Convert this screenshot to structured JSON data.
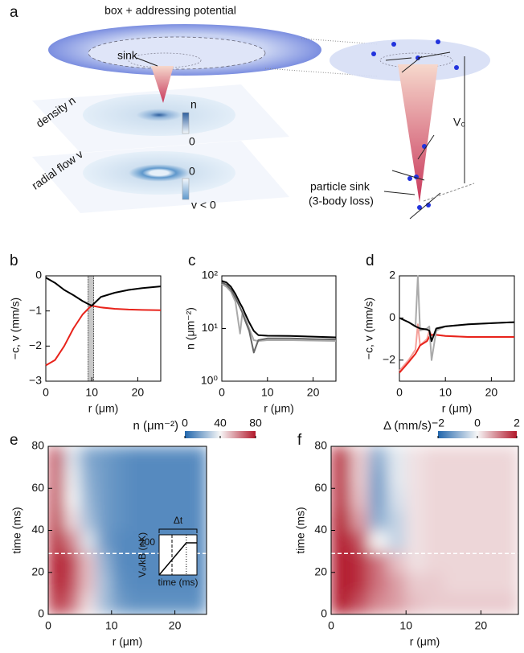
{
  "illustration": {
    "label": "a",
    "title": "box + addressing potential",
    "sink": "sink",
    "density": "density n",
    "flow": "radial flow v",
    "n_bar_top": "n",
    "n_bar_bottom": "0",
    "v_bar_top": "0",
    "v_bar_bottom": "v < 0",
    "depth": "V₀",
    "sink_line1": "particle sink",
    "sink_line2": "(3-body loss)"
  },
  "chart_data": [
    {
      "type": "line",
      "label": "b",
      "xlabel": "r (μm)",
      "ylabel": "−c, v (mm/s)",
      "xlim": [
        0,
        25
      ],
      "ylim": [
        -3,
        0
      ],
      "xticks": [
        0,
        10,
        20
      ],
      "yticks": [
        0,
        {
          "value": -1,
          "label": "−1"
        },
        {
          "value": -2,
          "label": "−2"
        },
        {
          "value": -3,
          "label": "−3"
        }
      ],
      "shaded_region": [
        9.2,
        10.4
      ],
      "x": [
        0,
        2,
        4,
        6,
        8,
        9.5,
        10,
        12,
        15,
        18,
        21,
        25
      ],
      "series": [
        {
          "color": "#e8231b",
          "values": [
            -2.55,
            -2.4,
            -2.0,
            -1.5,
            -1.1,
            -0.9,
            -0.85,
            -0.9,
            -0.94,
            -0.96,
            -0.97,
            -0.98
          ]
        },
        {
          "color": "#000000",
          "values": [
            -0.05,
            -0.2,
            -0.4,
            -0.55,
            -0.72,
            -0.82,
            -0.85,
            -0.6,
            -0.48,
            -0.4,
            -0.35,
            -0.3
          ]
        }
      ]
    },
    {
      "type": "line",
      "label": "c",
      "xlabel": "r (μm)",
      "ylabel": "n (μm⁻²)",
      "yscale": "log",
      "xlim": [
        0,
        25
      ],
      "ylim": [
        1,
        100
      ],
      "xticks": [
        0,
        10,
        20
      ],
      "yticks": [
        {
          "value": 1,
          "label": "10⁰"
        },
        {
          "value": 10,
          "label": "10¹"
        },
        {
          "value": 100,
          "label": "10²"
        }
      ],
      "x": [
        0,
        1,
        2,
        3,
        4,
        4.5,
        5,
        6,
        7,
        8,
        10,
        15,
        20,
        25
      ],
      "series": [
        {
          "color": "#aaaaaa",
          "values": [
            70,
            62,
            50,
            32,
            8,
            20,
            17,
            10,
            6,
            5.8,
            6,
            6,
            5.9,
            5.8
          ]
        },
        {
          "color": "#666666",
          "values": [
            75,
            68,
            55,
            38,
            25,
            20,
            15,
            9,
            3.5,
            6,
            6.5,
            6.5,
            6.3,
            6.2
          ]
        },
        {
          "color": "#000000",
          "values": [
            80,
            75,
            62,
            45,
            30,
            25,
            20,
            13,
            9,
            7.5,
            7.3,
            7.2,
            7.0,
            6.8
          ]
        }
      ]
    },
    {
      "type": "line",
      "label": "d",
      "xlabel": "r (μm)",
      "ylabel": "−c, v (mm/s)",
      "xlim": [
        0,
        25
      ],
      "ylim": [
        -3,
        2
      ],
      "xticks": [
        0,
        10,
        20
      ],
      "yticks": [
        2,
        0,
        {
          "value": -2,
          "label": "−2"
        }
      ],
      "x": [
        0,
        2,
        3.5,
        4,
        4.5,
        6,
        6.5,
        7,
        8,
        10,
        15,
        20,
        25
      ],
      "series": [
        {
          "color": "#f4a09a",
          "values": [
            -2.5,
            -2.0,
            -1.5,
            -0.3,
            -1.3,
            -1.0,
            -0.6,
            -0.8,
            -0.8,
            -0.85,
            -0.9,
            -0.9,
            -0.9
          ]
        },
        {
          "color": "#e8231b",
          "values": [
            -2.6,
            -2.1,
            -1.7,
            -1.5,
            -1.3,
            -1.1,
            -0.9,
            -0.8,
            -0.8,
            -0.85,
            -0.9,
            -0.9,
            -0.9
          ]
        },
        {
          "color": "#aaaaaa",
          "values": [
            0,
            -0.2,
            -0.4,
            2.0,
            -0.6,
            -0.5,
            -0.4,
            -2.0,
            -0.6,
            -0.4,
            -0.3,
            -0.25,
            -0.2
          ]
        },
        {
          "color": "#000000",
          "values": [
            0,
            -0.2,
            -0.4,
            -0.45,
            -0.5,
            -0.55,
            -0.6,
            -1.1,
            -0.5,
            -0.4,
            -0.3,
            -0.25,
            -0.2
          ]
        }
      ]
    },
    {
      "type": "heatmap",
      "label": "e",
      "xlabel": "r (μm)",
      "ylabel": "time (ms)",
      "xlim": [
        0,
        25
      ],
      "ylim": [
        0,
        80
      ],
      "xticks": [
        0,
        10,
        20
      ],
      "yticks": [
        0,
        20,
        40,
        60,
        80
      ],
      "colorbar_label": "n (μm⁻²)",
      "clim": [
        0,
        80
      ],
      "colorbar_ticks": [
        0,
        40,
        80
      ],
      "marker_y": 29,
      "xbins": [
        0,
        2.5,
        5,
        7.5,
        10,
        12.5,
        15,
        17.5,
        20,
        22.5,
        25
      ],
      "ybins": [
        0,
        10,
        20,
        30,
        40,
        50,
        60,
        70,
        80
      ],
      "values": [
        [
          75,
          65,
          45,
          25,
          15,
          12,
          12,
          12,
          12,
          12
        ],
        [
          80,
          70,
          50,
          25,
          12,
          10,
          10,
          10,
          10,
          10
        ],
        [
          80,
          72,
          50,
          22,
          10,
          10,
          10,
          10,
          10,
          10
        ],
        [
          78,
          60,
          35,
          15,
          10,
          10,
          10,
          10,
          10,
          10
        ],
        [
          75,
          45,
          25,
          15,
          12,
          10,
          10,
          10,
          10,
          10
        ],
        [
          72,
          40,
          22,
          15,
          12,
          10,
          10,
          10,
          10,
          10
        ],
        [
          70,
          38,
          20,
          15,
          12,
          10,
          10,
          10,
          10,
          10
        ],
        [
          70,
          35,
          18,
          15,
          12,
          10,
          10,
          10,
          10,
          10
        ]
      ]
    },
    {
      "type": "heatmap",
      "label": "f",
      "xlabel": "r (μm)",
      "ylabel": "time (ms)",
      "xlim": [
        0,
        25
      ],
      "ylim": [
        0,
        80
      ],
      "xticks": [
        0,
        10,
        20
      ],
      "yticks": [
        0,
        20,
        40,
        60,
        80
      ],
      "colorbar_label": "Δ (mm/s)",
      "clim": [
        -2,
        2
      ],
      "colorbar_ticks": [
        {
          "value": -2,
          "label": "−2"
        },
        0,
        2
      ],
      "marker_y": 29,
      "xbins": [
        0,
        2.5,
        5,
        7.5,
        10,
        12.5,
        15,
        17.5,
        20,
        22.5,
        25
      ],
      "ybins": [
        0,
        10,
        20,
        30,
        40,
        50,
        60,
        70,
        80
      ],
      "values": [
        [
          2,
          1.5,
          1,
          0.8,
          0.5,
          0.4,
          0.4,
          0.4,
          0.4,
          0.4
        ],
        [
          2,
          1.8,
          1.2,
          0.8,
          0.4,
          0.4,
          0.3,
          0.3,
          0.3,
          0.3
        ],
        [
          2,
          1.8,
          1.2,
          0.5,
          0.2,
          0.3,
          0.3,
          0.3,
          0.3,
          0.3
        ],
        [
          2,
          1.5,
          0,
          -0.5,
          0.2,
          0.3,
          0.3,
          0.3,
          0.3,
          0.3
        ],
        [
          2,
          0.8,
          -1,
          -0.5,
          0.2,
          0.3,
          0.3,
          0.3,
          0.3,
          0.3
        ],
        [
          1.8,
          0.5,
          -1.2,
          -0.3,
          0.2,
          0.3,
          0.3,
          0.3,
          0.3,
          0.3
        ],
        [
          1.8,
          0.4,
          -1.2,
          -0.2,
          0.2,
          0.3,
          0.3,
          0.3,
          0.3,
          0.3
        ],
        [
          1.8,
          0.4,
          -1.0,
          -0.2,
          0.2,
          0.3,
          0.3,
          0.3,
          0.3,
          0.3
        ]
      ]
    },
    {
      "type": "line",
      "xlabel": "time (ms)",
      "ylabel": "V₀/kB (nK)",
      "annotation": "Δt",
      "xlim": [
        0,
        1
      ],
      "ylim": [
        0,
        250
      ],
      "yticks": [
        200
      ],
      "x": [
        0,
        0.72,
        1
      ],
      "series": [
        {
          "color": "#000000",
          "values": [
            0,
            200,
            200
          ]
        }
      ]
    }
  ]
}
